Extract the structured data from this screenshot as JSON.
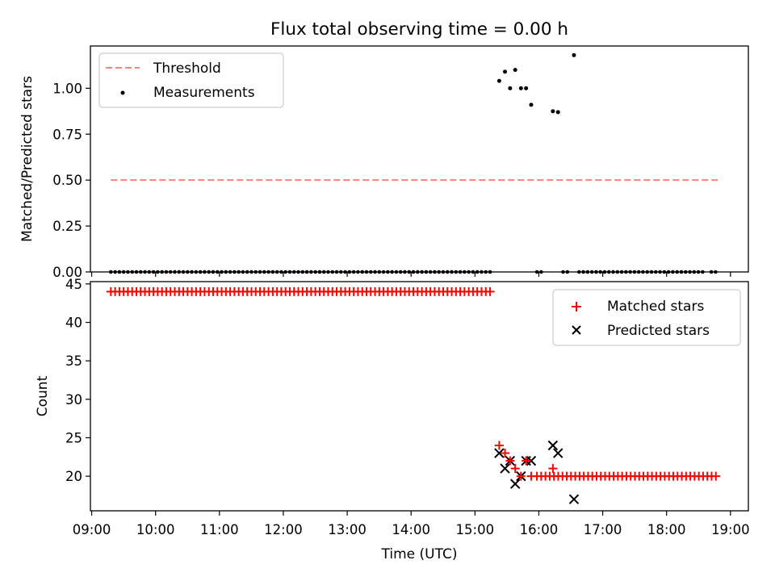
{
  "colors": {
    "threshold": "#ff7f7f",
    "matched": "#ff0000",
    "predicted": "#000000",
    "measurement": "#000000"
  },
  "chart_data": [
    {
      "type": "scatter",
      "title": "Flux total observing time = 0.00 h",
      "xlabel": "",
      "ylabel": "Matched/Predicted stars",
      "xlim": [
        8.98,
        19.28
      ],
      "ylim": [
        0.0,
        1.23
      ],
      "yticks": [
        0.0,
        0.25,
        0.5,
        0.75,
        1.0
      ],
      "ytick_labels": [
        "0.00",
        "0.25",
        "0.50",
        "0.75",
        "1.00"
      ],
      "legend": {
        "position": "top-left",
        "entries": [
          "Threshold",
          "Measurements"
        ]
      },
      "threshold": {
        "name": "Threshold",
        "value": 0.5,
        "x_range": [
          9.3,
          18.8
        ],
        "style": "dashed"
      },
      "measurements": {
        "name": "Measurements",
        "zero_segments": [
          {
            "start": 9.3,
            "end": 15.3,
            "step": 0.0667
          },
          {
            "start": 15.97,
            "end": 16.1,
            "step": 0.0667
          },
          {
            "start": 16.38,
            "end": 16.47,
            "step": 0.0667
          },
          {
            "start": 16.63,
            "end": 18.57,
            "step": 0.0667
          },
          {
            "start": 18.7,
            "end": 18.8,
            "step": 0.0667
          }
        ],
        "x": [
          15.38,
          15.47,
          15.55,
          15.63,
          15.72,
          15.8,
          15.88,
          16.22,
          16.3,
          16.55
        ],
        "y": [
          1.04,
          1.09,
          1.0,
          1.1,
          1.0,
          1.0,
          0.91,
          0.875,
          0.87,
          1.18
        ]
      }
    },
    {
      "type": "scatter",
      "title": "",
      "xlabel": "Time (UTC)",
      "ylabel": "Count",
      "xlim": [
        8.98,
        19.28
      ],
      "ylim": [
        15.5,
        45.3
      ],
      "yticks": [
        20,
        25,
        30,
        35,
        40,
        45
      ],
      "ytick_labels": [
        "20",
        "25",
        "30",
        "35",
        "40",
        "45"
      ],
      "xticks": [
        9,
        10,
        11,
        12,
        13,
        14,
        15,
        16,
        17,
        18,
        19
      ],
      "xtick_labels": [
        "09:00",
        "10:00",
        "11:00",
        "12:00",
        "13:00",
        "14:00",
        "15:00",
        "16:00",
        "17:00",
        "18:00",
        "19:00"
      ],
      "legend": {
        "position": "top-right",
        "entries": [
          "Matched stars",
          "Predicted stars"
        ]
      },
      "series": [
        {
          "name": "Matched stars",
          "marker": "+",
          "constant_segments": [
            {
              "start": 9.3,
              "end": 15.3,
              "step": 0.0667,
              "value": 44
            },
            {
              "start": 15.97,
              "end": 18.8,
              "step": 0.0667,
              "value": 20
            }
          ],
          "x": [
            15.38,
            15.47,
            15.55,
            15.63,
            15.72,
            15.8,
            15.88,
            16.22
          ],
          "y": [
            24,
            23,
            22,
            21,
            20,
            22,
            20,
            21
          ]
        },
        {
          "name": "Predicted stars",
          "marker": "x",
          "x": [
            15.38,
            15.47,
            15.55,
            15.63,
            15.72,
            15.8,
            15.88,
            16.22,
            16.3,
            16.55
          ],
          "y": [
            23,
            21,
            22,
            19,
            20,
            22,
            22,
            24,
            23,
            17
          ]
        }
      ]
    }
  ]
}
